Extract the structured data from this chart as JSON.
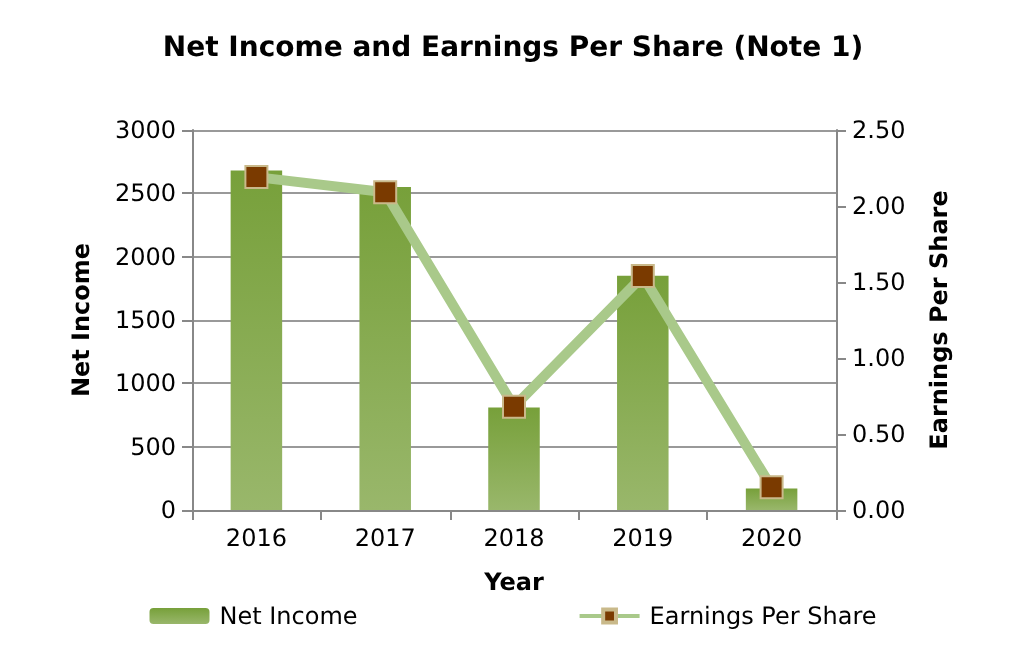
{
  "chart_data": {
    "type": "bar",
    "title": "Net Income and Earnings Per Share (Note 1)",
    "xlabel": "Year",
    "ylabel": "Net Income",
    "y2label": "Earnings Per Share",
    "categories": [
      "2016",
      "2017",
      "2018",
      "2019",
      "2020"
    ],
    "series": [
      {
        "name": "Net Income",
        "color": "#77a03a",
        "values": [
          2680,
          2550,
          810,
          1850,
          170
        ]
      },
      {
        "name": "Earnings Per Share",
        "type": "line",
        "axis": "y2",
        "color": "#a9c98a",
        "marker": "square",
        "values": [
          2.19,
          2.09,
          0.68,
          1.54,
          0.15
        ]
      }
    ],
    "ylim": [
      0,
      3000
    ],
    "yticks": [
      0,
      500,
      1000,
      1500,
      2000,
      2500,
      3000
    ],
    "y2lim": [
      0,
      2.5
    ],
    "y2ticks": [
      {
        "value": 0,
        "label": "0.00"
      },
      {
        "value": 0.5,
        "label": "0.50"
      },
      {
        "value": 1,
        "label": "1.00"
      },
      {
        "value": 1.5,
        "label": "1.50"
      },
      {
        "value": 2,
        "label": "2.00"
      },
      {
        "value": 2.5,
        "label": "2.50"
      }
    ],
    "grid": "y",
    "legend": "bottom"
  }
}
